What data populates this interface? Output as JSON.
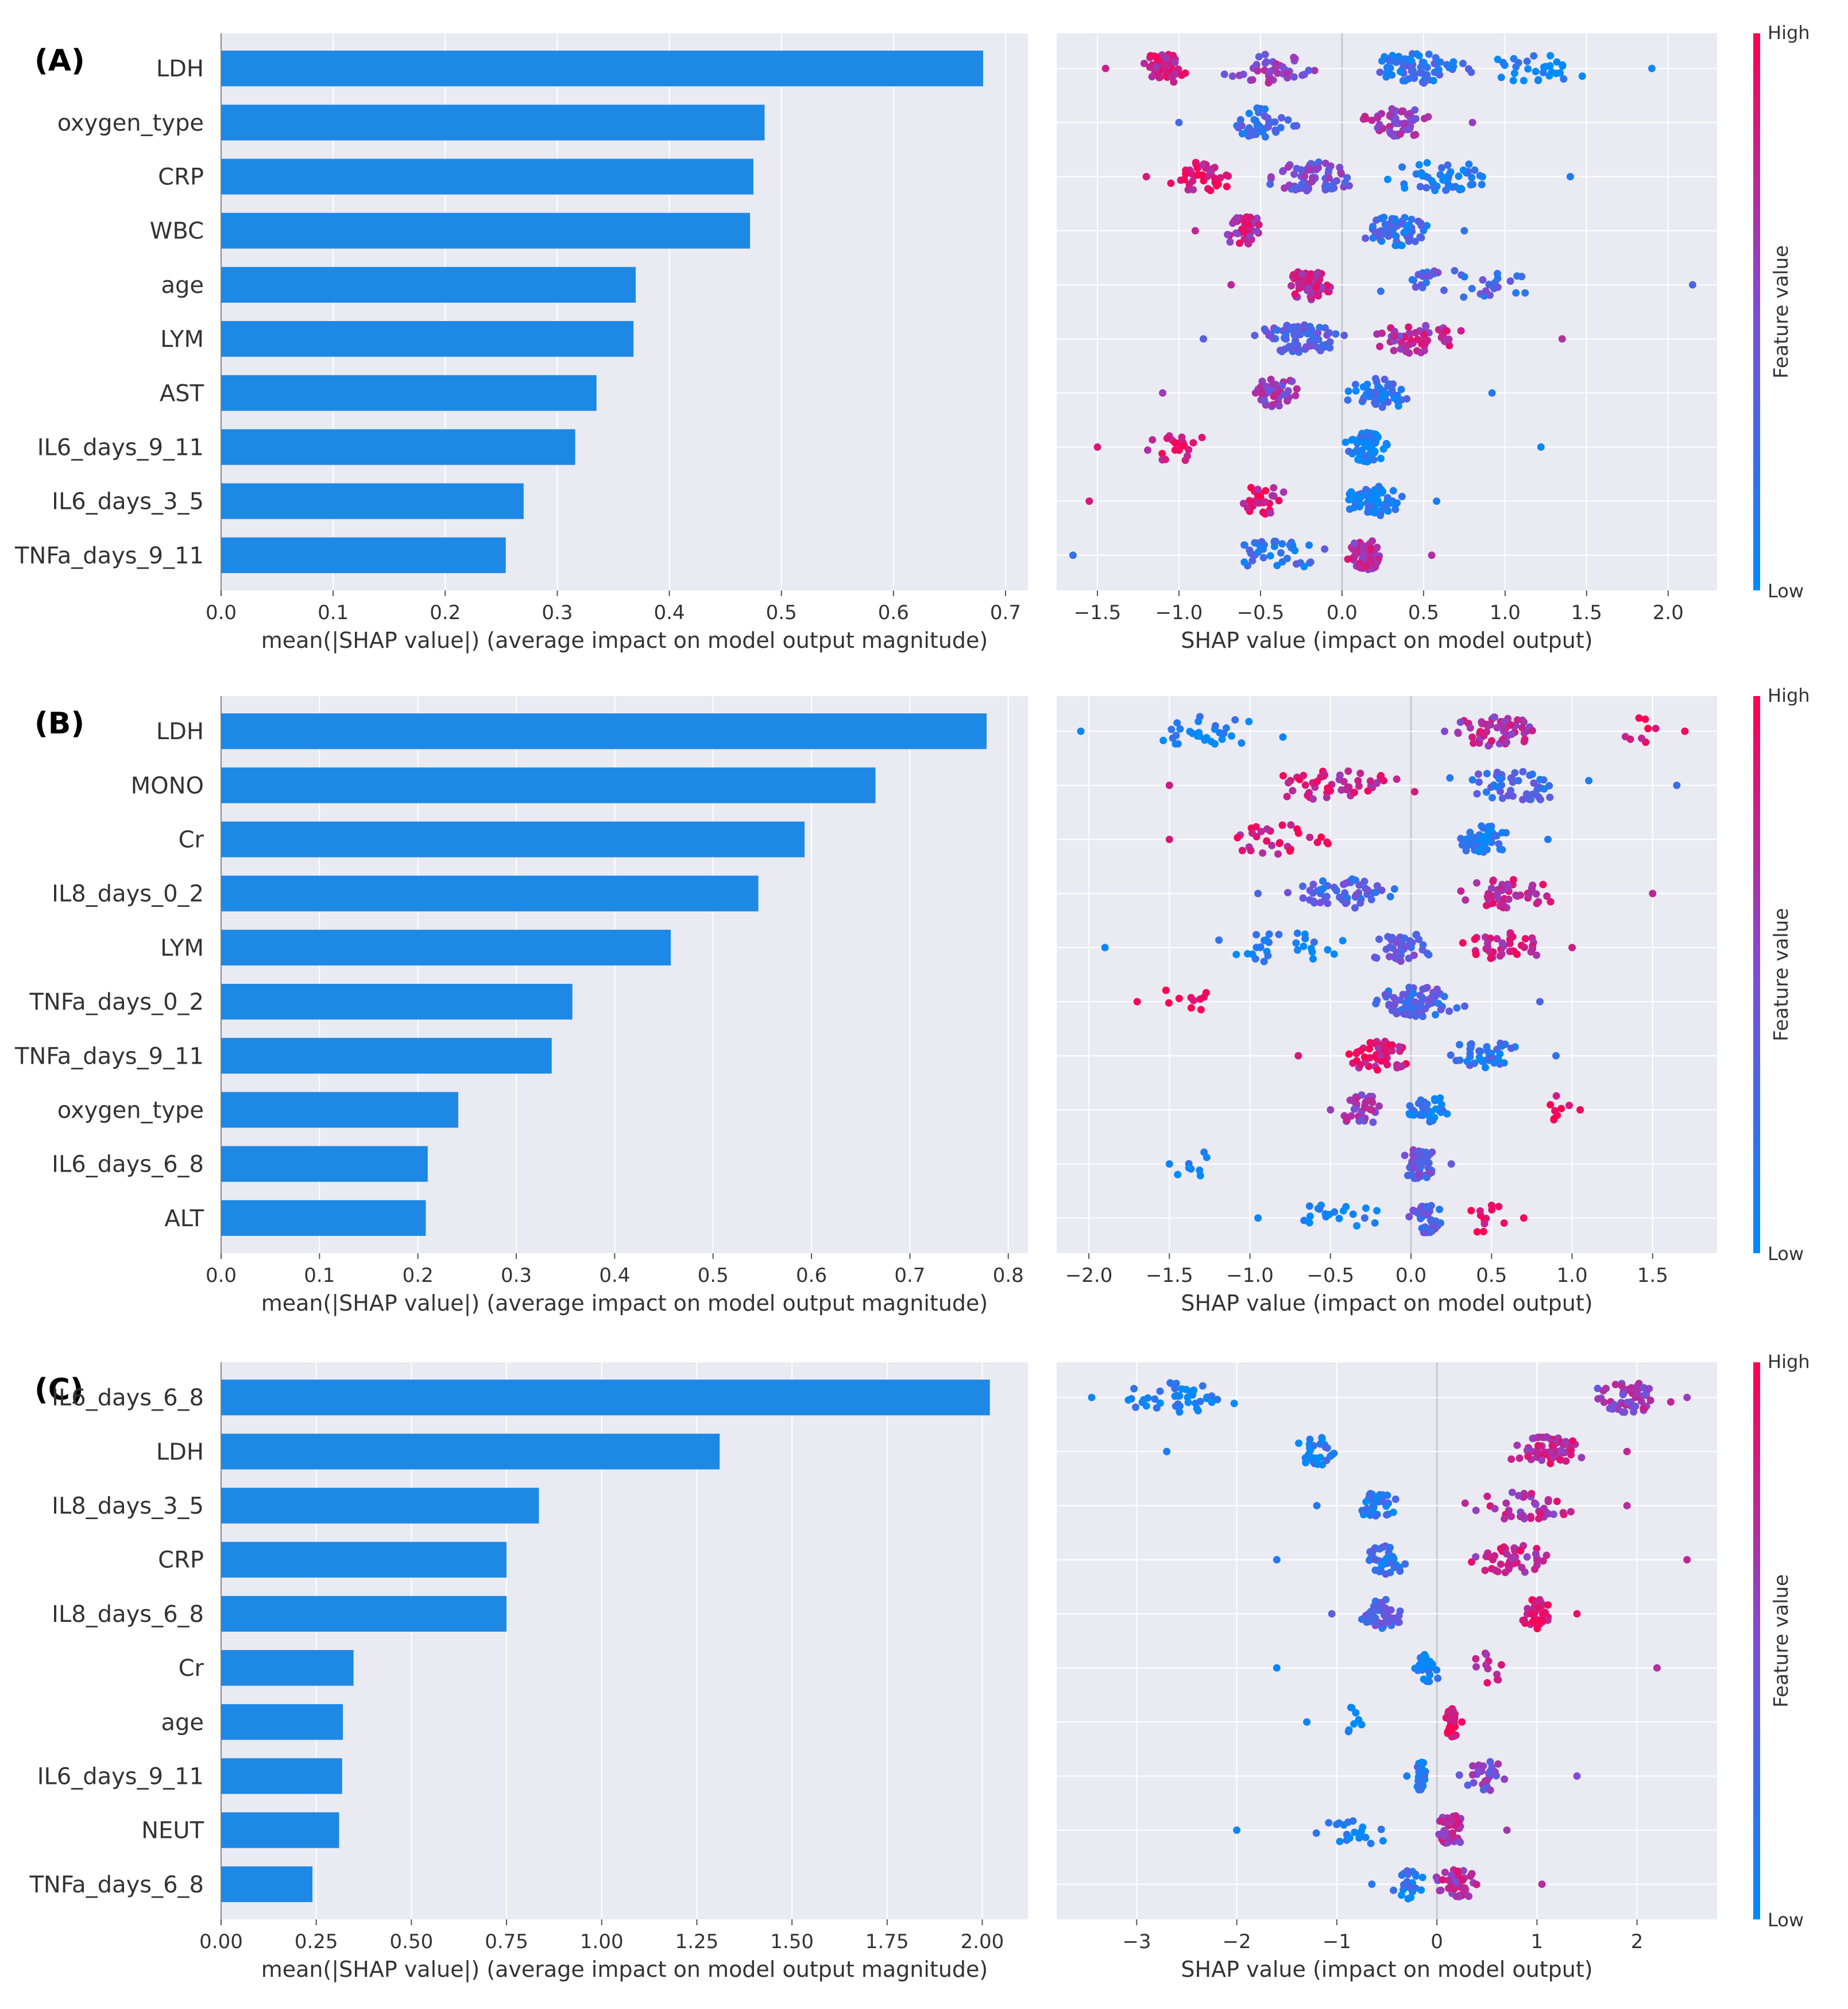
{
  "colors": {
    "bar": "#1e88e5",
    "plot_bg": "#eaeaf2",
    "grid": "#ffffff",
    "low": "#008bfb",
    "high": "#ff0052",
    "text": "#333333"
  },
  "colorbar": {
    "high_label": "High",
    "low_label": "Low",
    "title": "Feature value"
  },
  "chart_data": [
    {
      "panel": "(A)",
      "bar": {
        "type": "bar",
        "orientation": "horizontal",
        "categories": [
          "LDH",
          "oxygen_type",
          "CRP",
          "WBC",
          "age",
          "LYM",
          "AST",
          "IL6_days_9_11",
          "IL6_days_3_5",
          "TNFa_days_9_11"
        ],
        "values": [
          0.68,
          0.485,
          0.475,
          0.472,
          0.37,
          0.368,
          0.335,
          0.316,
          0.27,
          0.254
        ],
        "xlim": [
          0,
          0.72
        ],
        "xticks": [
          "0.0",
          "0.1",
          "0.2",
          "0.3",
          "0.4",
          "0.5",
          "0.6",
          "0.7"
        ],
        "tick_values": [
          0,
          0.1,
          0.2,
          0.3,
          0.4,
          0.5,
          0.6,
          0.7
        ],
        "xlabel": "mean(|SHAP value|) (average impact on model output magnitude)"
      },
      "beeswarm": {
        "type": "scatter",
        "xlim": [
          -1.75,
          2.3
        ],
        "xticks": [
          "−1.5",
          "−1.0",
          "−0.5",
          "0.0",
          "0.5",
          "1.0",
          "1.5",
          "2.0"
        ],
        "tick_values": [
          -1.5,
          -1.0,
          -0.5,
          0.0,
          0.5,
          1.0,
          1.5,
          2.0
        ],
        "xlabel": "SHAP value (impact on model output)",
        "rows": [
          {
            "min": -1.45,
            "max": 1.9,
            "clusters": [
              {
                "c": -1.1,
                "s": 0.15,
                "n": 60,
                "col": 0.8
              },
              {
                "c": -0.4,
                "s": 0.3,
                "n": 40,
                "col": 0.55
              },
              {
                "c": 0.45,
                "s": 0.3,
                "n": 70,
                "col": 0.2
              },
              {
                "c": 1.2,
                "s": 0.3,
                "n": 30,
                "col": 0.05
              }
            ]
          },
          {
            "min": -1.0,
            "max": 0.8,
            "clusters": [
              {
                "c": -0.5,
                "s": 0.18,
                "n": 45,
                "col": 0.25
              },
              {
                "c": 0.35,
                "s": 0.18,
                "n": 60,
                "col": 0.6
              }
            ]
          },
          {
            "min": -1.2,
            "max": 1.4,
            "clusters": [
              {
                "c": -0.85,
                "s": 0.2,
                "n": 40,
                "col": 0.85
              },
              {
                "c": -0.2,
                "s": 0.25,
                "n": 70,
                "col": 0.45
              },
              {
                "c": 0.6,
                "s": 0.35,
                "n": 50,
                "col": 0.1
              }
            ]
          },
          {
            "min": -0.9,
            "max": 0.75,
            "clusters": [
              {
                "c": -0.6,
                "s": 0.12,
                "n": 45,
                "col": 0.75
              },
              {
                "c": 0.35,
                "s": 0.2,
                "n": 65,
                "col": 0.2
              }
            ]
          },
          {
            "min": -0.68,
            "max": 2.15,
            "clusters": [
              {
                "c": -0.2,
                "s": 0.12,
                "n": 70,
                "col": 0.75
              },
              {
                "c": 0.7,
                "s": 0.4,
                "n": 40,
                "col": 0.3
              }
            ]
          },
          {
            "min": -0.85,
            "max": 1.35,
            "clusters": [
              {
                "c": -0.25,
                "s": 0.25,
                "n": 70,
                "col": 0.35
              },
              {
                "c": 0.45,
                "s": 0.25,
                "n": 60,
                "col": 0.7
              }
            ]
          },
          {
            "min": -1.1,
            "max": 0.92,
            "clusters": [
              {
                "c": -0.4,
                "s": 0.15,
                "n": 50,
                "col": 0.6
              },
              {
                "c": 0.25,
                "s": 0.18,
                "n": 55,
                "col": 0.15
              }
            ]
          },
          {
            "min": -1.5,
            "max": 1.22,
            "clusters": [
              {
                "c": -1.0,
                "s": 0.2,
                "n": 20,
                "col": 0.85
              },
              {
                "c": 0.15,
                "s": 0.1,
                "n": 70,
                "col": 0.05
              }
            ]
          },
          {
            "min": -1.55,
            "max": 0.58,
            "clusters": [
              {
                "c": -0.5,
                "s": 0.2,
                "n": 30,
                "col": 0.85
              },
              {
                "c": 0.2,
                "s": 0.15,
                "n": 70,
                "col": 0.1
              }
            ]
          },
          {
            "min": -1.65,
            "max": 0.55,
            "clusters": [
              {
                "c": -0.4,
                "s": 0.3,
                "n": 40,
                "col": 0.2
              },
              {
                "c": 0.15,
                "s": 0.1,
                "n": 65,
                "col": 0.7
              }
            ]
          }
        ]
      }
    },
    {
      "panel": "(B)",
      "bar": {
        "type": "bar",
        "orientation": "horizontal",
        "categories": [
          "LDH",
          "MONO",
          "Cr",
          "IL8_days_0_2",
          "LYM",
          "TNFa_days_0_2",
          "TNFa_days_9_11",
          "oxygen_type",
          "IL6_days_6_8",
          "ALT"
        ],
        "values": [
          0.778,
          0.665,
          0.593,
          0.546,
          0.457,
          0.357,
          0.336,
          0.241,
          0.21,
          0.208
        ],
        "xlim": [
          0,
          0.82
        ],
        "xticks": [
          "0.0",
          "0.1",
          "0.2",
          "0.3",
          "0.4",
          "0.5",
          "0.6",
          "0.7",
          "0.8"
        ],
        "tick_values": [
          0,
          0.1,
          0.2,
          0.3,
          0.4,
          0.5,
          0.6,
          0.7,
          0.8
        ],
        "xlabel": "mean(|SHAP value|) (average impact on model output magnitude)"
      },
      "beeswarm": {
        "type": "scatter",
        "xlim": [
          -2.2,
          1.9
        ],
        "xticks": [
          "−2.0",
          "−1.5",
          "−1.0",
          "−0.5",
          "0.0",
          "0.5",
          "1.0",
          "1.5"
        ],
        "tick_values": [
          -2.0,
          -1.5,
          -1.0,
          -0.5,
          0.0,
          0.5,
          1.0,
          1.5
        ],
        "xlabel": "SHAP value (impact on model output)",
        "rows": [
          {
            "min": -2.05,
            "max": 1.7,
            "clusters": [
              {
                "c": -1.3,
                "s": 0.4,
                "n": 30,
                "col": 0.05
              },
              {
                "c": 0.5,
                "s": 0.25,
                "n": 60,
                "col": 0.7
              },
              {
                "c": 1.45,
                "s": 0.12,
                "n": 8,
                "col": 0.95
              }
            ]
          },
          {
            "min": -1.5,
            "max": 1.65,
            "clusters": [
              {
                "c": -0.5,
                "s": 0.4,
                "n": 50,
                "col": 0.8
              },
              {
                "c": 0.7,
                "s": 0.4,
                "n": 50,
                "col": 0.25
              }
            ]
          },
          {
            "min": -1.5,
            "max": 0.85,
            "clusters": [
              {
                "c": -0.8,
                "s": 0.35,
                "n": 30,
                "col": 0.85
              },
              {
                "c": 0.45,
                "s": 0.15,
                "n": 50,
                "col": 0.1
              }
            ]
          },
          {
            "min": -0.95,
            "max": 1.5,
            "clusters": [
              {
                "c": -0.4,
                "s": 0.3,
                "n": 55,
                "col": 0.3
              },
              {
                "c": 0.6,
                "s": 0.25,
                "n": 50,
                "col": 0.75
              }
            ]
          },
          {
            "min": -1.9,
            "max": 1.0,
            "clusters": [
              {
                "c": -0.8,
                "s": 0.4,
                "n": 30,
                "col": 0.05
              },
              {
                "c": -0.05,
                "s": 0.2,
                "n": 40,
                "col": 0.4
              },
              {
                "c": 0.6,
                "s": 0.25,
                "n": 40,
                "col": 0.8
              }
            ]
          },
          {
            "min": -1.7,
            "max": 0.8,
            "clusters": [
              {
                "c": -1.4,
                "s": 0.15,
                "n": 10,
                "col": 0.95
              },
              {
                "c": 0.05,
                "s": 0.25,
                "n": 70,
                "col": 0.3
              }
            ]
          },
          {
            "min": -0.7,
            "max": 0.9,
            "clusters": [
              {
                "c": -0.2,
                "s": 0.2,
                "n": 50,
                "col": 0.85
              },
              {
                "c": 0.45,
                "s": 0.2,
                "n": 40,
                "col": 0.2
              }
            ]
          },
          {
            "min": -0.5,
            "max": 1.05,
            "clusters": [
              {
                "c": -0.3,
                "s": 0.12,
                "n": 35,
                "col": 0.6
              },
              {
                "c": 0.1,
                "s": 0.12,
                "n": 40,
                "col": 0.15
              },
              {
                "c": 0.9,
                "s": 0.08,
                "n": 8,
                "col": 0.95
              }
            ]
          },
          {
            "min": -1.5,
            "max": 0.25,
            "clusters": [
              {
                "c": -1.35,
                "s": 0.1,
                "n": 8,
                "col": 0.05
              },
              {
                "c": 0.05,
                "s": 0.1,
                "n": 50,
                "col": 0.4
              }
            ]
          },
          {
            "min": -0.95,
            "max": 0.7,
            "clusters": [
              {
                "c": -0.5,
                "s": 0.25,
                "n": 20,
                "col": 0.05
              },
              {
                "c": 0.1,
                "s": 0.08,
                "n": 45,
                "col": 0.3
              },
              {
                "c": 0.45,
                "s": 0.12,
                "n": 12,
                "col": 0.95
              }
            ]
          }
        ]
      }
    },
    {
      "panel": "(C)",
      "bar": {
        "type": "bar",
        "orientation": "horizontal",
        "categories": [
          "IL6_days_6_8",
          "LDH",
          "IL8_days_3_5",
          "CRP",
          "IL8_days_6_8",
          "Cr",
          "age",
          "IL6_days_9_11",
          "NEUT",
          "TNFa_days_6_8"
        ],
        "values": [
          2.02,
          1.31,
          0.835,
          0.75,
          0.75,
          0.348,
          0.32,
          0.318,
          0.31,
          0.24
        ],
        "xlim": [
          0,
          2.12
        ],
        "xticks": [
          "0.00",
          "0.25",
          "0.50",
          "0.75",
          "1.00",
          "1.25",
          "1.50",
          "1.75",
          "2.00"
        ],
        "tick_values": [
          0,
          0.25,
          0.5,
          0.75,
          1.0,
          1.25,
          1.5,
          1.75,
          2.0
        ],
        "xlabel": "mean(|SHAP value|) (average impact on model output magnitude)"
      },
      "beeswarm": {
        "type": "scatter",
        "xlim": [
          -3.8,
          2.8
        ],
        "xticks": [
          "−3",
          "−2",
          "−1",
          "0",
          "1",
          "2"
        ],
        "tick_values": [
          -3,
          -2,
          -1,
          0,
          1,
          2
        ],
        "xlabel": "SHAP value (impact on model output)",
        "rows": [
          {
            "min": -3.45,
            "max": 2.5,
            "clusters": [
              {
                "c": -2.6,
                "s": 0.5,
                "n": 45,
                "col": 0.05
              },
              {
                "c": 1.9,
                "s": 0.35,
                "n": 55,
                "col": 0.6
              }
            ]
          },
          {
            "min": -2.7,
            "max": 1.9,
            "clusters": [
              {
                "c": -1.2,
                "s": 0.2,
                "n": 30,
                "col": 0.1
              },
              {
                "c": 1.1,
                "s": 0.35,
                "n": 60,
                "col": 0.75
              }
            ]
          },
          {
            "min": -1.2,
            "max": 1.9,
            "clusters": [
              {
                "c": -0.6,
                "s": 0.15,
                "n": 35,
                "col": 0.15
              },
              {
                "c": 0.9,
                "s": 0.5,
                "n": 40,
                "col": 0.7
              }
            ]
          },
          {
            "min": -1.6,
            "max": 2.5,
            "clusters": [
              {
                "c": -0.5,
                "s": 0.2,
                "n": 40,
                "col": 0.15
              },
              {
                "c": 0.8,
                "s": 0.45,
                "n": 50,
                "col": 0.75
              }
            ]
          },
          {
            "min": -1.05,
            "max": 1.4,
            "clusters": [
              {
                "c": -0.55,
                "s": 0.2,
                "n": 50,
                "col": 0.35
              },
              {
                "c": 1.0,
                "s": 0.15,
                "n": 40,
                "col": 0.9
              }
            ]
          },
          {
            "min": -1.6,
            "max": 2.2,
            "clusters": [
              {
                "c": -0.1,
                "s": 0.12,
                "n": 25,
                "col": 0.05
              },
              {
                "c": 0.5,
                "s": 0.2,
                "n": 12,
                "col": 0.7
              }
            ]
          },
          {
            "min": -1.3,
            "max": 0.25,
            "clusters": [
              {
                "c": -0.9,
                "s": 0.2,
                "n": 8,
                "col": 0.05
              },
              {
                "c": 0.15,
                "s": 0.05,
                "n": 40,
                "col": 0.95
              }
            ]
          },
          {
            "min": -0.3,
            "max": 1.4,
            "clusters": [
              {
                "c": -0.15,
                "s": 0.06,
                "n": 35,
                "col": 0.1
              },
              {
                "c": 0.5,
                "s": 0.25,
                "n": 30,
                "col": 0.5
              }
            ]
          },
          {
            "min": -2.0,
            "max": 0.7,
            "clusters": [
              {
                "c": -0.8,
                "s": 0.4,
                "n": 20,
                "col": 0.05
              },
              {
                "c": 0.15,
                "s": 0.15,
                "n": 55,
                "col": 0.65
              }
            ]
          },
          {
            "min": -0.65,
            "max": 1.05,
            "clusters": [
              {
                "c": -0.3,
                "s": 0.15,
                "n": 25,
                "col": 0.15
              },
              {
                "c": 0.2,
                "s": 0.2,
                "n": 45,
                "col": 0.7
              }
            ]
          }
        ]
      }
    }
  ]
}
